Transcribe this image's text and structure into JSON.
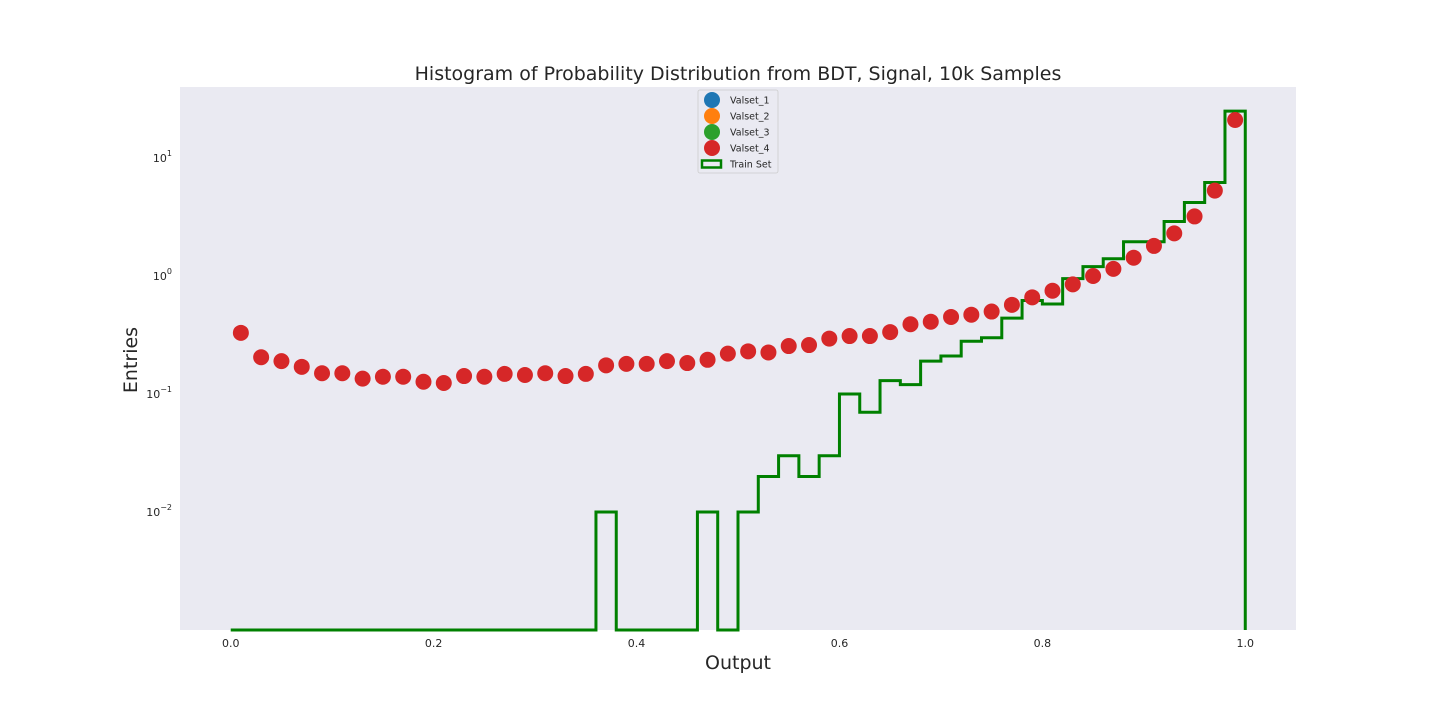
{
  "chart_data": {
    "type": "scatter",
    "title": "Histogram of Probability Distribution from BDT, Signal, 10k Samples",
    "xlabel": "Output",
    "ylabel": "Entries",
    "xlim": [
      -0.05,
      1.05
    ],
    "ylim": [
      0.001,
      40
    ],
    "yscale": "log",
    "grid": false,
    "legend_placement": "upper center",
    "xticks": [
      0.0,
      0.2,
      0.4,
      0.6,
      0.8,
      1.0
    ],
    "xtick_labels": [
      "0.0",
      "0.2",
      "0.4",
      "0.6",
      "0.8",
      "1.0"
    ],
    "yticks": [
      0.01,
      0.1,
      1,
      10
    ],
    "ytick_labels": [
      {
        "base": "10",
        "exp": "−2"
      },
      {
        "base": "10",
        "exp": "−1"
      },
      {
        "base": "10",
        "exp": "0"
      },
      {
        "base": "10",
        "exp": "1"
      }
    ],
    "colors": {
      "background": "#eaeaf2",
      "Valset_1": "#1f77b4",
      "Valset_2": "#ff7f0e",
      "Valset_3": "#2ca02c",
      "Valset_4": "#d62728",
      "Train Set": "#008000"
    },
    "series": [
      {
        "name": "Valset_1",
        "style": "marker",
        "x": [],
        "y": []
      },
      {
        "name": "Valset_2",
        "style": "marker",
        "x": [],
        "y": []
      },
      {
        "name": "Valset_3",
        "style": "marker",
        "x": [],
        "y": []
      },
      {
        "name": "Valset_4",
        "style": "marker",
        "x": [
          0.01,
          0.03,
          0.05,
          0.07,
          0.09,
          0.11,
          0.13,
          0.15,
          0.17,
          0.19,
          0.21,
          0.23,
          0.25,
          0.27,
          0.29,
          0.31,
          0.33,
          0.35,
          0.37,
          0.39,
          0.41,
          0.43,
          0.45,
          0.47,
          0.49,
          0.51,
          0.53,
          0.55,
          0.57,
          0.59,
          0.61,
          0.63,
          0.65,
          0.67,
          0.69,
          0.71,
          0.73,
          0.75,
          0.77,
          0.79,
          0.81,
          0.83,
          0.85,
          0.87,
          0.89,
          0.91,
          0.93,
          0.95,
          0.97,
          0.99
        ],
        "y": [
          0.33,
          0.205,
          0.19,
          0.17,
          0.15,
          0.15,
          0.135,
          0.14,
          0.14,
          0.127,
          0.124,
          0.142,
          0.14,
          0.148,
          0.145,
          0.15,
          0.142,
          0.148,
          0.175,
          0.18,
          0.18,
          0.19,
          0.183,
          0.195,
          0.22,
          0.23,
          0.225,
          0.255,
          0.26,
          0.295,
          0.31,
          0.31,
          0.335,
          0.39,
          0.41,
          0.45,
          0.47,
          0.5,
          0.57,
          0.66,
          0.75,
          0.85,
          1.0,
          1.15,
          1.43,
          1.8,
          2.3,
          3.2,
          5.3,
          21
        ]
      },
      {
        "name": "Train Set",
        "style": "step",
        "edges": [
          0.0,
          0.02,
          0.04,
          0.06,
          0.08,
          0.1,
          0.12,
          0.14,
          0.16,
          0.18,
          0.2,
          0.22,
          0.24,
          0.26,
          0.28,
          0.3,
          0.32,
          0.34,
          0.36,
          0.38,
          0.4,
          0.42,
          0.44,
          0.46,
          0.48,
          0.5,
          0.52,
          0.54,
          0.56,
          0.58,
          0.6,
          0.62,
          0.64,
          0.66,
          0.68,
          0.7,
          0.72,
          0.74,
          0.76,
          0.78,
          0.8,
          0.82,
          0.84,
          0.86,
          0.88,
          0.9,
          0.92,
          0.94,
          0.96,
          0.98,
          1.0
        ],
        "values": [
          0,
          0,
          0,
          0,
          0,
          0,
          0,
          0,
          0,
          0,
          0,
          0,
          0,
          0,
          0,
          0,
          0,
          0,
          0.01,
          0,
          0,
          0,
          0,
          0.01,
          0,
          0.01,
          0.02,
          0.03,
          0.02,
          0.03,
          0.1,
          0.07,
          0.13,
          0.12,
          0.19,
          0.21,
          0.28,
          0.3,
          0.44,
          0.62,
          0.58,
          0.95,
          1.2,
          1.4,
          1.95,
          1.95,
          2.9,
          4.2,
          6.2,
          25
        ]
      }
    ]
  }
}
